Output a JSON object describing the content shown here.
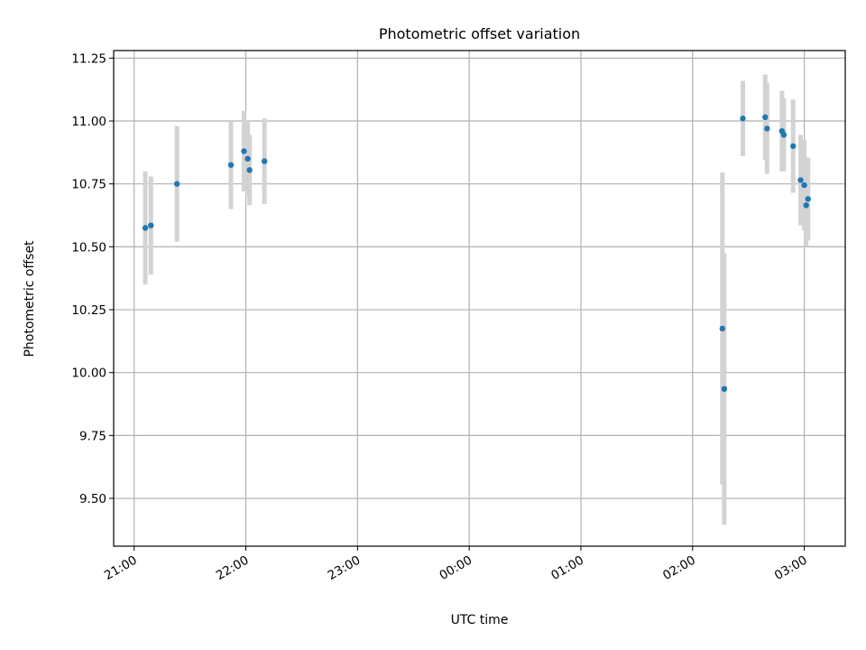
{
  "chart_data": {
    "type": "scatter",
    "title": "Photometric offset variation",
    "xlabel": "UTC time",
    "ylabel": "Photometric offset",
    "x_is_time": true,
    "xlim": [
      "20:49",
      "03:22"
    ],
    "ylim": [
      9.31,
      11.28
    ],
    "xticks": [
      "21:00",
      "22:00",
      "23:00",
      "00:00",
      "01:00",
      "02:00",
      "03:00"
    ],
    "yticks": [
      "9.50",
      "9.75",
      "10.00",
      "10.25",
      "10.50",
      "10.75",
      "11.00",
      "11.25"
    ],
    "grid": true,
    "colors": {
      "point": "#1f77b4",
      "errorbar": "#d3d3d3"
    },
    "series": [
      {
        "points": [
          {
            "x": "21:06",
            "y": 10.575,
            "err": 0.225
          },
          {
            "x": "21:09",
            "y": 10.585,
            "err": 0.195
          },
          {
            "x": "21:23",
            "y": 10.75,
            "err": 0.23
          },
          {
            "x": "21:52",
            "y": 10.825,
            "err": 0.175
          },
          {
            "x": "21:59",
            "y": 10.88,
            "err": 0.16
          },
          {
            "x": "22:01",
            "y": 10.85,
            "err": 0.15
          },
          {
            "x": "22:02",
            "y": 10.805,
            "err": 0.14
          },
          {
            "x": "22:10",
            "y": 10.84,
            "err": 0.17
          },
          {
            "x": "02:16",
            "y": 10.175,
            "err": 0.62
          },
          {
            "x": "02:17",
            "y": 9.935,
            "err": 0.54
          },
          {
            "x": "02:27",
            "y": 11.01,
            "err": 0.15
          },
          {
            "x": "02:39",
            "y": 11.015,
            "err": 0.17
          },
          {
            "x": "02:40",
            "y": 10.97,
            "err": 0.18
          },
          {
            "x": "02:48",
            "y": 10.96,
            "err": 0.16
          },
          {
            "x": "02:49",
            "y": 10.945,
            "err": 0.145
          },
          {
            "x": "02:54",
            "y": 10.9,
            "err": 0.185
          },
          {
            "x": "02:58",
            "y": 10.765,
            "err": 0.18
          },
          {
            "x": "03:00",
            "y": 10.745,
            "err": 0.18
          },
          {
            "x": "03:01",
            "y": 10.665,
            "err": 0.165
          },
          {
            "x": "03:02",
            "y": 10.69,
            "err": 0.165
          }
        ]
      }
    ]
  }
}
